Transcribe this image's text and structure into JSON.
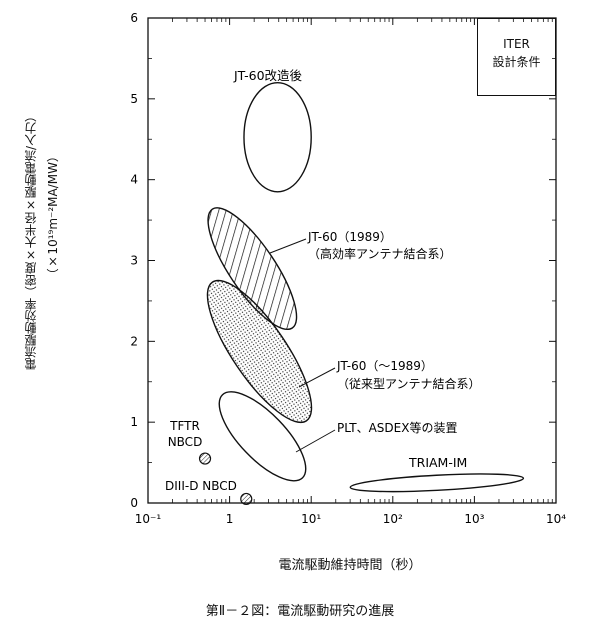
{
  "chart_data": {
    "type": "scatter",
    "x_scale": "log",
    "xlim": [
      0.1,
      10000
    ],
    "ylim": [
      0,
      6
    ],
    "x_ticks": [
      "10⁻¹",
      "1",
      "10¹",
      "10²",
      "10³",
      "10⁴"
    ],
    "y_ticks": [
      "0",
      "1",
      "2",
      "3",
      "4",
      "5",
      "6"
    ],
    "xlabel": "電流駆動維持時間（秒）",
    "ylabel_line1": "電流駆動効率（密度×大半径×駆動電流/入力）",
    "ylabel_line2": "（×10¹⁹m⁻²MA/MW）",
    "iter_box": [
      "ITER",
      "設計条件"
    ],
    "regions": [
      {
        "label": "JT-60改造後",
        "x_range": [
          1.5,
          10
        ],
        "y_range": [
          3.85,
          5.2
        ],
        "fill": "none"
      },
      {
        "label_line1": "JT-60（1989）",
        "label_line2": "（高効率アンテナ結合系）",
        "x_range": [
          0.6,
          6
        ],
        "y_range": [
          2.15,
          3.65
        ],
        "fill": "hatch"
      },
      {
        "label_line1": "JT-60（～1989）",
        "label_line2": "（従来型アンテナ結合系）",
        "x_range": [
          0.6,
          9
        ],
        "y_range": [
          1.0,
          2.75
        ],
        "fill": "dots"
      },
      {
        "label": "PLT、ASDEX等の装置",
        "x_range": [
          0.8,
          8
        ],
        "y_range": [
          0.3,
          1.35
        ],
        "fill": "none"
      },
      {
        "label": "TRIAM-IM",
        "x_range": [
          30,
          4000
        ],
        "y_range": [
          0.08,
          0.42
        ],
        "fill": "none"
      }
    ],
    "points": [
      {
        "label_line1": "TFTR",
        "label_line2": "NBCD",
        "x": 0.5,
        "y": 0.55
      },
      {
        "label": "DIII-D NBCD",
        "x": 1.6,
        "y": 0.05
      }
    ]
  },
  "caption": "第Ⅱ－２図：電流駆動研究の進展"
}
